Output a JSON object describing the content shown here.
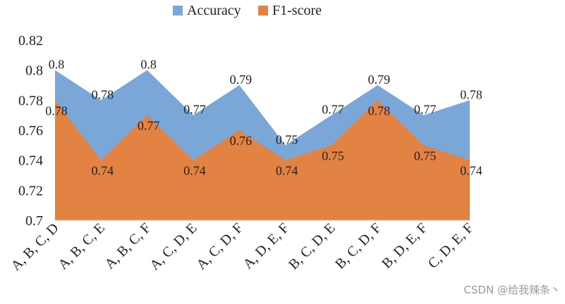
{
  "chart_data": {
    "type": "area",
    "title": "",
    "xlabel": "",
    "ylabel": "",
    "ylim": [
      0.7,
      0.82
    ],
    "yticks": [
      "0.7",
      "0.72",
      "0.74",
      "0.76",
      "0.78",
      "0.8",
      "0.82"
    ],
    "categories": [
      "A, B, C, D",
      "A, B, C, E",
      "A, B, C, F",
      "A, C, D, E",
      "A, C, D, F",
      "A, D, E, F",
      "B, C, D, E",
      "B, C, D, F",
      "B, D, E, F",
      "C, D, E, F"
    ],
    "series": [
      {
        "name": "Accuracy",
        "color": "#7ba7d8",
        "values": [
          0.8,
          0.78,
          0.8,
          0.77,
          0.79,
          0.75,
          0.77,
          0.79,
          0.77,
          0.78
        ],
        "labels": [
          "0.8",
          "0.78",
          "0.8",
          "0.77",
          "0.79",
          "0.75",
          "0.77",
          "0.79",
          "0.77",
          "0.78"
        ]
      },
      {
        "name": "F1-score",
        "color": "#e28344",
        "values": [
          0.78,
          0.74,
          0.77,
          0.74,
          0.76,
          0.74,
          0.75,
          0.78,
          0.75,
          0.74
        ],
        "labels": [
          "0.78",
          "0.74",
          "0.77",
          "0.74",
          "0.76",
          "0.74",
          "0.75",
          "0.78",
          "0.75",
          "0.74"
        ]
      }
    ],
    "legend": "top-center",
    "grid": false
  },
  "watermark": "CSDN @给我辣条丶"
}
